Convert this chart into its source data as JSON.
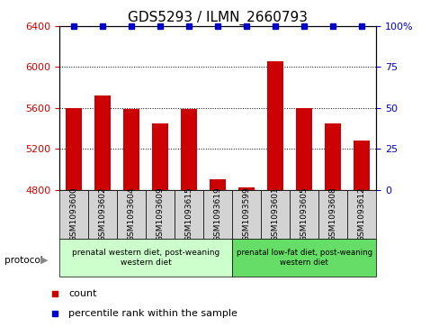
{
  "title": "GDS5293 / ILMN_2660793",
  "samples": [
    "GSM1093600",
    "GSM1093602",
    "GSM1093604",
    "GSM1093609",
    "GSM1093615",
    "GSM1093619",
    "GSM1093599",
    "GSM1093601",
    "GSM1093605",
    "GSM1093608",
    "GSM1093612"
  ],
  "counts": [
    5600,
    5720,
    5590,
    5450,
    5590,
    4900,
    4820,
    6060,
    5600,
    5450,
    5280
  ],
  "percentile_ranks": [
    100,
    100,
    100,
    100,
    100,
    100,
    100,
    100,
    100,
    100,
    100
  ],
  "ylim_left": [
    4800,
    6400
  ],
  "ylim_right": [
    0,
    100
  ],
  "yticks_left": [
    4800,
    5200,
    5600,
    6000,
    6400
  ],
  "yticks_right": [
    0,
    25,
    50,
    75,
    100
  ],
  "bar_color": "#cc0000",
  "dot_color": "#0000cc",
  "group1_label": "prenatal western diet, post-weaning\nwestern diet",
  "group2_label": "prenatal low-fat diet, post-weaning\nwestern diet",
  "group1_indices": [
    0,
    1,
    2,
    3,
    4,
    5
  ],
  "group2_indices": [
    6,
    7,
    8,
    9,
    10
  ],
  "group1_color": "#ccffcc",
  "group2_color": "#66dd66",
  "protocol_label": "protocol",
  "legend_count_label": "count",
  "legend_pct_label": "percentile rank within the sample",
  "bar_width": 0.55,
  "background_color": "#ffffff",
  "tick_label_area_color": "#d3d3d3",
  "title_fontsize": 11,
  "tick_fontsize": 8,
  "label_fontsize": 6.5,
  "legend_fontsize": 8
}
